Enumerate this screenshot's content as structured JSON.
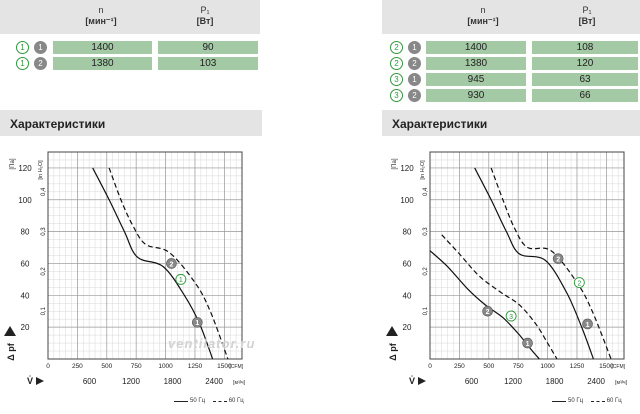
{
  "left_table": {
    "col1_header": "n",
    "col1_unit": "[мин⁻¹]",
    "col2_header": "P₁",
    "col2_unit": "[Вт]",
    "rows": [
      {
        "curve": "1",
        "mode": "1",
        "n": "1400",
        "p": "90"
      },
      {
        "curve": "1",
        "mode": "2",
        "n": "1380",
        "p": "103"
      }
    ]
  },
  "right_table": {
    "col1_header": "n",
    "col1_unit": "[мин⁻¹]",
    "col2_header": "P₁",
    "col2_unit": "[Вт]",
    "rows": [
      {
        "curve": "2",
        "mode": "1",
        "n": "1400",
        "p": "108"
      },
      {
        "curve": "2",
        "mode": "2",
        "n": "1380",
        "p": "120"
      },
      {
        "curve": "3",
        "mode": "1",
        "n": "945",
        "p": "63"
      },
      {
        "curve": "3",
        "mode": "2",
        "n": "930",
        "p": "66"
      }
    ]
  },
  "section_title_left": "Характеристики",
  "section_title_right": "Характеристики",
  "watermark": "ventilator.ru",
  "colors": {
    "accent_green": "#2e9a3a",
    "cell_green": "#a4c9a5",
    "header_gray": "#e4e4e4"
  },
  "chart_data": [
    {
      "type": "line",
      "ylabel": "Δ pf",
      "ylabel_unit": "[Па]",
      "y2_unit": "[in H₂O]",
      "x_cfm_unit": "[CFM]",
      "x_m3h_unit": "[м³/ч]",
      "xlabel": "V̇",
      "ylim": [
        0,
        130
      ],
      "y_ticks": [
        "0",
        "20",
        "40",
        "60",
        "80",
        "100",
        "120"
      ],
      "y2_ticks": [
        "0,1",
        "0,2",
        "0,3",
        "0,4"
      ],
      "x_cfm_ticks": [
        "0",
        "250",
        "500",
        "750",
        "1000",
        "1250",
        "1500"
      ],
      "x_m3h_ticks": [
        "600",
        "1200",
        "1800",
        "2400"
      ],
      "legend": {
        "solid": "50 Гц",
        "dashed": "60 Гц"
      },
      "series": [
        {
          "name": "50 Гц",
          "style": "solid",
          "curve_label": "1",
          "points": [
            [
              380,
              120
            ],
            [
              520,
              100
            ],
            [
              650,
              80
            ],
            [
              760,
              64
            ],
            [
              980,
              58
            ],
            [
              1160,
              40
            ],
            [
              1290,
              22
            ],
            [
              1400,
              0
            ]
          ]
        },
        {
          "name": "60 Гц",
          "style": "dashed",
          "curve_label": "1",
          "points": [
            [
              520,
              120
            ],
            [
              620,
              100
            ],
            [
              720,
              84
            ],
            [
              830,
              72
            ],
            [
              1030,
              67
            ],
            [
              1250,
              48
            ],
            [
              1380,
              30
            ],
            [
              1530,
              0
            ]
          ]
        }
      ],
      "markers": [
        {
          "label": "2",
          "style": "filled",
          "x": 1050,
          "y": 60
        },
        {
          "label": "1",
          "style": "filled",
          "x": 1270,
          "y": 23
        },
        {
          "label": "1",
          "style": "outline",
          "x": 1130,
          "y": 50
        }
      ]
    },
    {
      "type": "line",
      "ylabel": "Δ pf",
      "ylabel_unit": "[Па]",
      "y2_unit": "[in H₂O]",
      "x_cfm_unit": "[CFM]",
      "x_m3h_unit": "[м³/ч]",
      "xlabel": "V̇",
      "ylim": [
        0,
        130
      ],
      "y_ticks": [
        "0",
        "20",
        "40",
        "60",
        "80",
        "100",
        "120"
      ],
      "y2_ticks": [
        "0,1",
        "0,2",
        "0,3",
        "0,4"
      ],
      "x_cfm_ticks": [
        "0",
        "250",
        "500",
        "750",
        "1000",
        "1250",
        "1500"
      ],
      "x_m3h_ticks": [
        "600",
        "1200",
        "1800",
        "2400"
      ],
      "legend": {
        "solid": "50 Гц",
        "dashed": "60 Гц"
      },
      "series": [
        {
          "name": "50 Гц",
          "style": "solid",
          "curve_label": "2",
          "points": [
            [
              380,
              120
            ],
            [
              520,
              100
            ],
            [
              650,
              80
            ],
            [
              760,
              66
            ],
            [
              980,
              62
            ],
            [
              1160,
              42
            ],
            [
              1290,
              20
            ],
            [
              1390,
              0
            ]
          ]
        },
        {
          "name": "60 Гц",
          "style": "dashed",
          "curve_label": "2",
          "points": [
            [
              520,
              120
            ],
            [
              620,
              100
            ],
            [
              720,
              82
            ],
            [
              830,
              70
            ],
            [
              1030,
              68
            ],
            [
              1250,
              48
            ],
            [
              1380,
              30
            ],
            [
              1540,
              0
            ]
          ]
        },
        {
          "name": "50 Гц",
          "style": "solid",
          "curve_label": "3",
          "points": [
            [
              0,
              68
            ],
            [
              150,
              58
            ],
            [
              320,
              44
            ],
            [
              470,
              34
            ],
            [
              620,
              26
            ],
            [
              750,
              16
            ],
            [
              860,
              6
            ],
            [
              930,
              0
            ]
          ]
        },
        {
          "name": "60 Гц",
          "style": "dashed",
          "curve_label": "3",
          "points": [
            [
              100,
              78
            ],
            [
              250,
              66
            ],
            [
              420,
              52
            ],
            [
              600,
              42
            ],
            [
              760,
              34
            ],
            [
              900,
              22
            ],
            [
              1000,
              10
            ],
            [
              1080,
              0
            ]
          ]
        }
      ],
      "markers": [
        {
          "label": "2",
          "style": "filled",
          "x": 1090,
          "y": 63
        },
        {
          "label": "2",
          "style": "filled",
          "x": 490,
          "y": 30
        },
        {
          "label": "1",
          "style": "filled",
          "x": 1340,
          "y": 22
        },
        {
          "label": "1",
          "style": "filled",
          "x": 830,
          "y": 10
        },
        {
          "label": "2",
          "style": "outline",
          "x": 1270,
          "y": 48
        },
        {
          "label": "3",
          "style": "outline",
          "x": 690,
          "y": 27
        }
      ]
    }
  ]
}
